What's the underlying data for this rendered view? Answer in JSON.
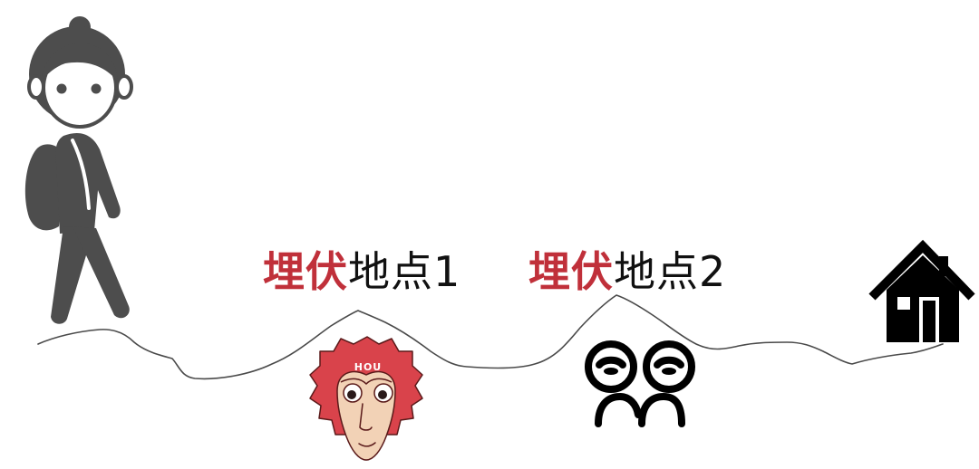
{
  "colors": {
    "highlight": "#c0303a",
    "figure": "#4d4d4d",
    "ink": "#111111",
    "monkey_face": "#d9434b"
  },
  "locations": [
    {
      "highlight": "埋伏",
      "text": "地点1"
    },
    {
      "highlight": "埋伏",
      "text": "地点2"
    }
  ],
  "monkey_badge": "HOU",
  "icons": {
    "traveler": "hiker-with-backpack-icon",
    "monkey": "monkey-face-icon",
    "bandits": "two-faces-icon",
    "home": "house-icon"
  }
}
